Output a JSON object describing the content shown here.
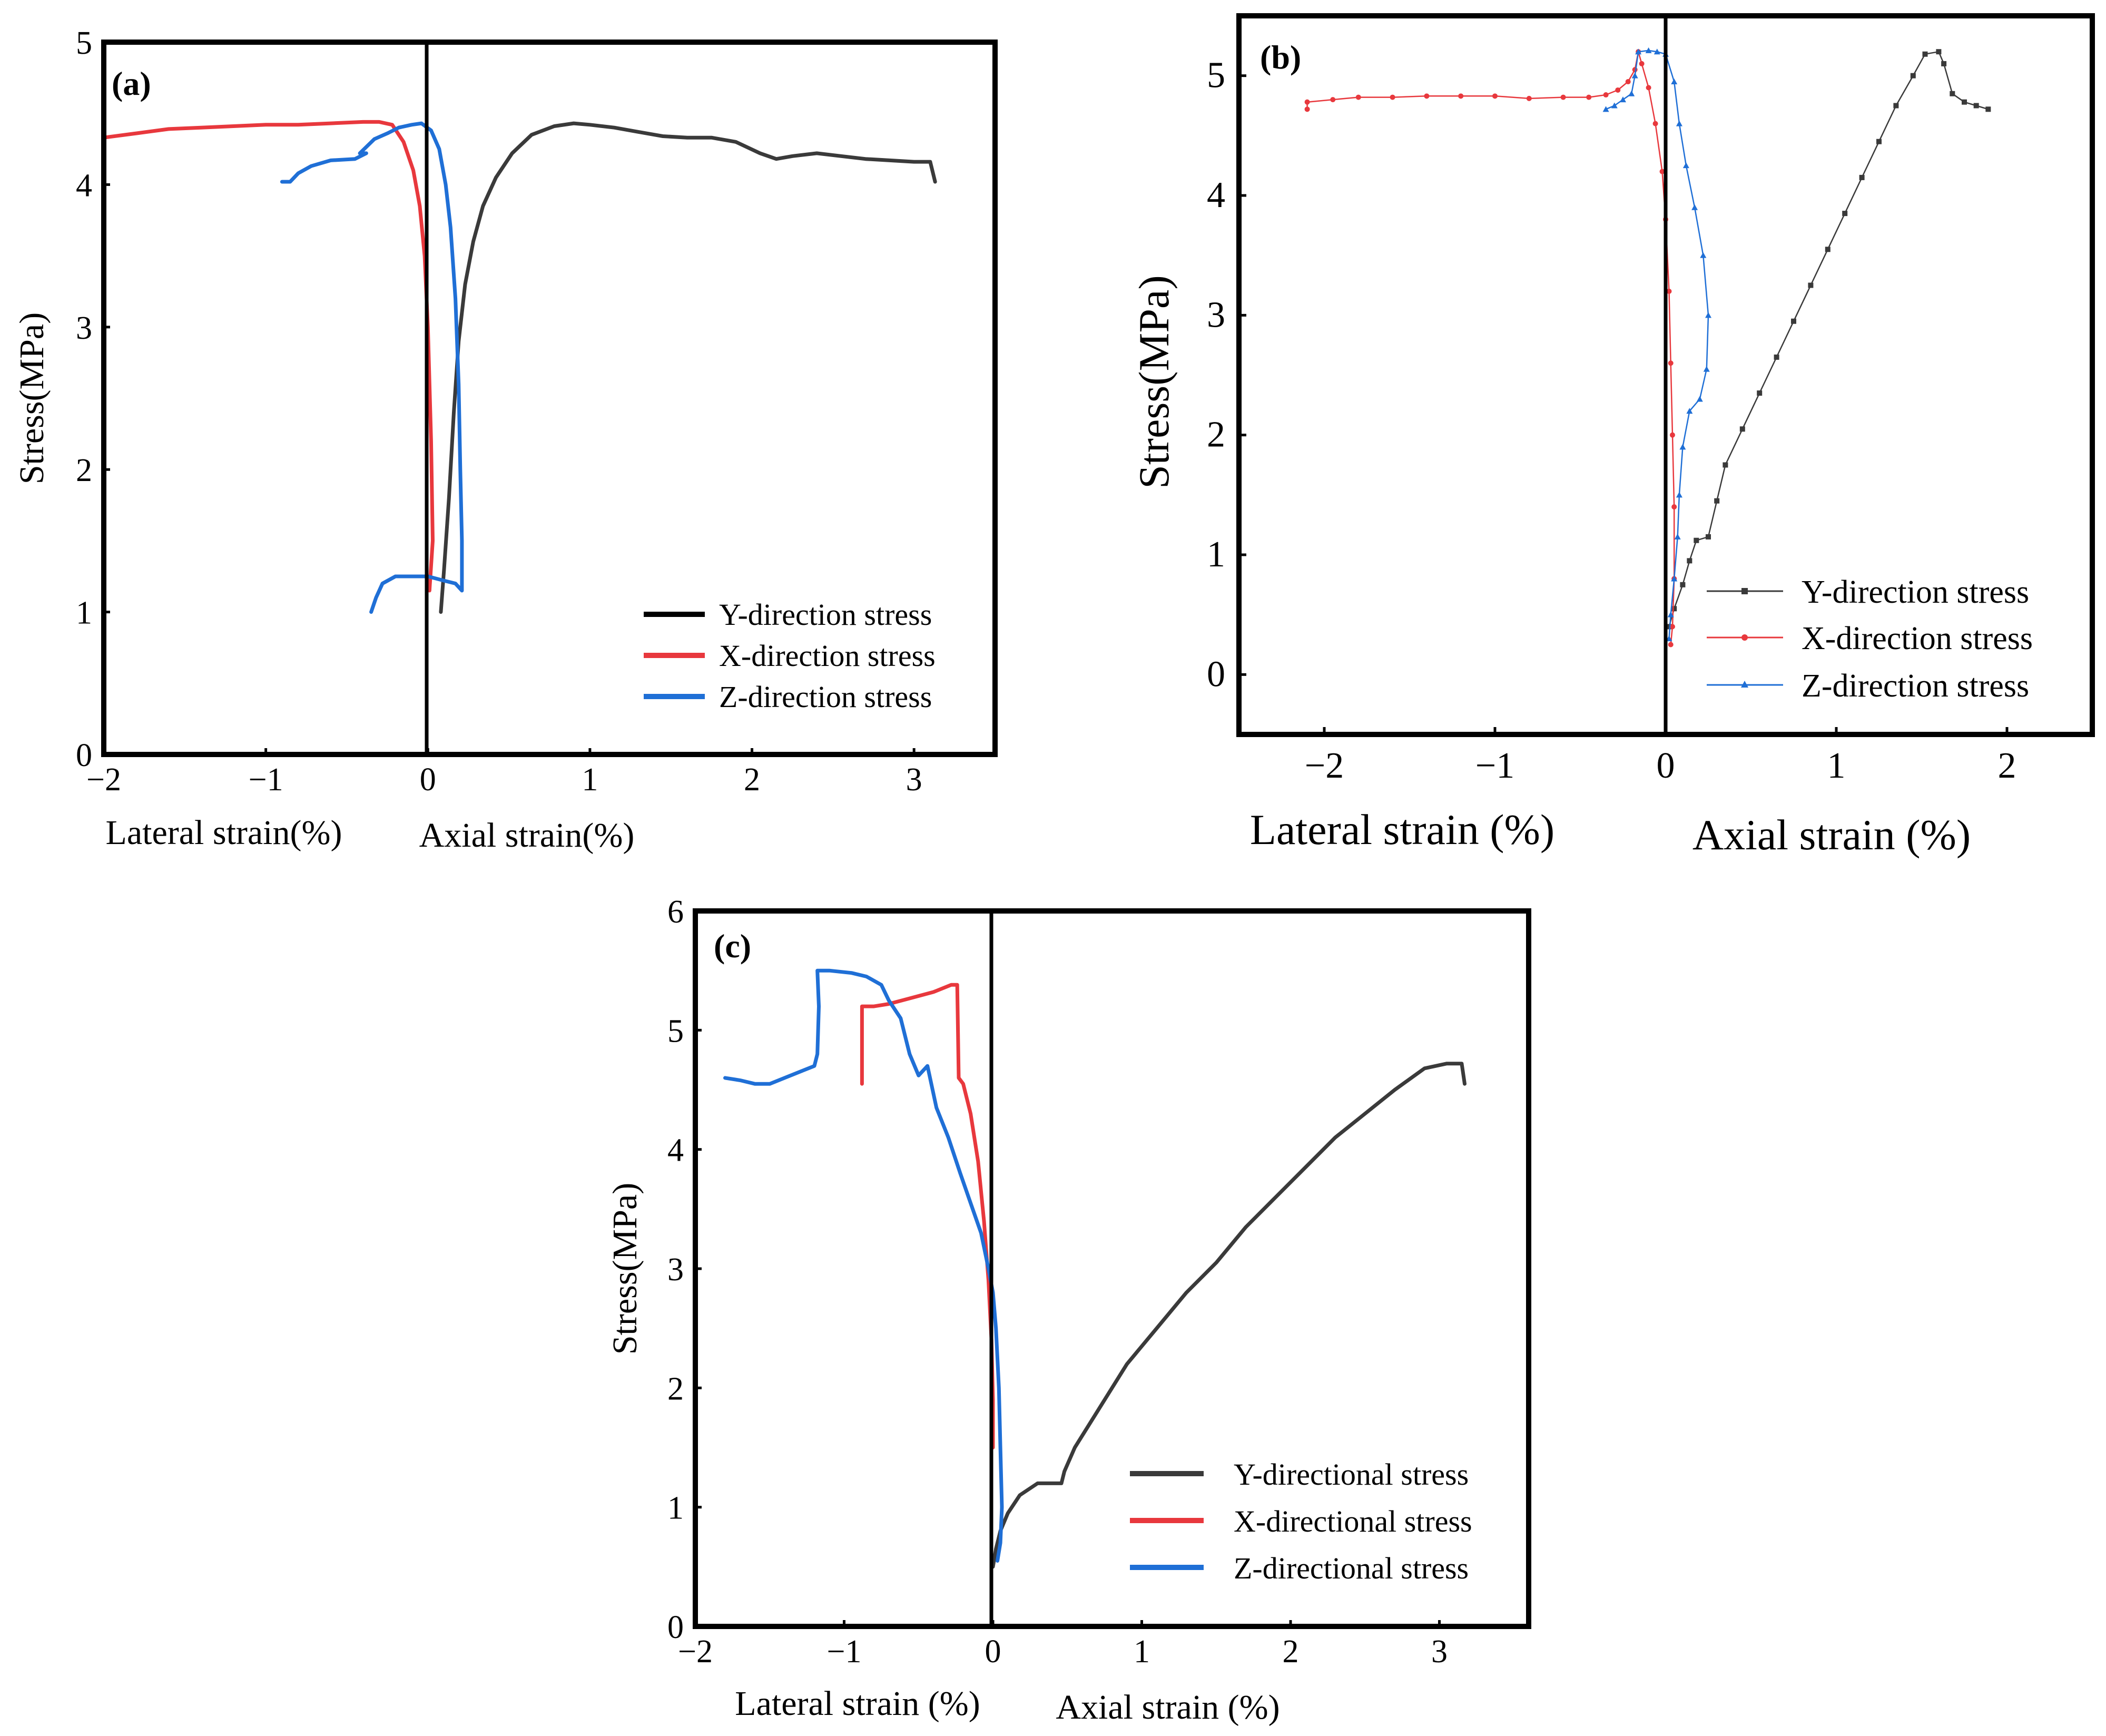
{
  "chart_data": [
    {
      "id": "a",
      "type": "line",
      "panel_label": "(a)",
      "ylabel": "Stress(MPa)",
      "xlabel_left": "Lateral strain(%)",
      "xlabel_right": "Axial strain(%)",
      "xlim": [
        -2,
        3.5
      ],
      "ylim": [
        0,
        5
      ],
      "xticks": [
        -2,
        -1,
        0,
        1,
        2,
        3
      ],
      "xtick_labels": [
        "−2",
        "−1",
        "0",
        "1",
        "2",
        "3"
      ],
      "yticks": [
        0,
        1,
        2,
        3,
        4,
        5
      ],
      "ytick_labels": [
        "0",
        "1",
        "2",
        "3",
        "4",
        "5"
      ],
      "legend_position": "bottom-right",
      "series": [
        {
          "name": "Y-direction stress",
          "color": "#3a3a3a",
          "marker": "none",
          "points": [
            [
              0.08,
              1.0
            ],
            [
              0.1,
              1.3
            ],
            [
              0.13,
              1.8
            ],
            [
              0.16,
              2.4
            ],
            [
              0.19,
              2.9
            ],
            [
              0.23,
              3.3
            ],
            [
              0.28,
              3.6
            ],
            [
              0.34,
              3.85
            ],
            [
              0.42,
              4.05
            ],
            [
              0.52,
              4.22
            ],
            [
              0.64,
              4.35
            ],
            [
              0.78,
              4.41
            ],
            [
              0.9,
              4.43
            ],
            [
              1.0,
              4.42
            ],
            [
              1.15,
              4.4
            ],
            [
              1.3,
              4.37
            ],
            [
              1.45,
              4.34
            ],
            [
              1.6,
              4.33
            ],
            [
              1.75,
              4.33
            ],
            [
              1.9,
              4.3
            ],
            [
              2.05,
              4.22
            ],
            [
              2.15,
              4.18
            ],
            [
              2.25,
              4.2
            ],
            [
              2.4,
              4.22
            ],
            [
              2.55,
              4.2
            ],
            [
              2.7,
              4.18
            ],
            [
              2.85,
              4.17
            ],
            [
              3.0,
              4.16
            ],
            [
              3.1,
              4.16
            ],
            [
              3.13,
              4.02
            ]
          ]
        },
        {
          "name": "X-direction stress",
          "color": "#e8383d",
          "marker": "none",
          "points": [
            [
              -2.0,
              4.33
            ],
            [
              -1.8,
              4.36
            ],
            [
              -1.6,
              4.39
            ],
            [
              -1.4,
              4.4
            ],
            [
              -1.2,
              4.41
            ],
            [
              -1.0,
              4.42
            ],
            [
              -0.8,
              4.42
            ],
            [
              -0.6,
              4.43
            ],
            [
              -0.4,
              4.44
            ],
            [
              -0.3,
              4.44
            ],
            [
              -0.22,
              4.42
            ],
            [
              -0.15,
              4.3
            ],
            [
              -0.09,
              4.1
            ],
            [
              -0.05,
              3.85
            ],
            [
              -0.02,
              3.5
            ],
            [
              0.0,
              3.0
            ],
            [
              0.02,
              2.2
            ],
            [
              0.03,
              1.5
            ],
            [
              0.01,
              1.15
            ]
          ]
        },
        {
          "name": "Z-direction stress",
          "color": "#1f6fd6",
          "marker": "none",
          "points": [
            [
              -0.9,
              4.02
            ],
            [
              -0.85,
              4.02
            ],
            [
              -0.8,
              4.08
            ],
            [
              -0.72,
              4.13
            ],
            [
              -0.6,
              4.17
            ],
            [
              -0.45,
              4.18
            ],
            [
              -0.38,
              4.22
            ],
            [
              -0.42,
              4.22
            ],
            [
              -0.33,
              4.32
            ],
            [
              -0.25,
              4.36
            ],
            [
              -0.18,
              4.4
            ],
            [
              -0.1,
              4.42
            ],
            [
              -0.04,
              4.43
            ],
            [
              0.02,
              4.38
            ],
            [
              0.07,
              4.25
            ],
            [
              0.11,
              4.0
            ],
            [
              0.14,
              3.7
            ],
            [
              0.17,
              3.2
            ],
            [
              0.19,
              2.6
            ],
            [
              0.2,
              2.0
            ],
            [
              0.21,
              1.5
            ],
            [
              0.21,
              1.15
            ],
            [
              0.17,
              1.2
            ],
            [
              0.1,
              1.22
            ],
            [
              0.0,
              1.25
            ],
            [
              -0.1,
              1.25
            ],
            [
              -0.2,
              1.25
            ],
            [
              -0.28,
              1.2
            ],
            [
              -0.32,
              1.1
            ],
            [
              -0.35,
              1.0
            ]
          ]
        }
      ]
    },
    {
      "id": "b",
      "type": "line",
      "panel_label": "(b)",
      "ylabel": "Stress(MPa)",
      "xlabel_left": "Lateral strain (%)",
      "xlabel_right": "Axial strain (%)",
      "xlim": [
        -2.5,
        2.5
      ],
      "ylim": [
        -0.5,
        5.5
      ],
      "xticks": [
        -2,
        -1,
        0,
        1,
        2
      ],
      "xtick_labels": [
        "−2",
        "−1",
        "0",
        "1",
        "2"
      ],
      "yticks": [
        0,
        1,
        2,
        3,
        4,
        5
      ],
      "ytick_labels": [
        "0",
        "1",
        "2",
        "3",
        "4",
        "5"
      ],
      "legend_position": "bottom-right",
      "series": [
        {
          "name": "Y-direction stress",
          "color": "#3a3a3a",
          "marker": "square",
          "points": [
            [
              0.02,
              0.4
            ],
            [
              0.05,
              0.55
            ],
            [
              0.1,
              0.75
            ],
            [
              0.14,
              0.95
            ],
            [
              0.18,
              1.12
            ],
            [
              0.25,
              1.15
            ],
            [
              0.3,
              1.45
            ],
            [
              0.35,
              1.75
            ],
            [
              0.45,
              2.05
            ],
            [
              0.55,
              2.35
            ],
            [
              0.65,
              2.65
            ],
            [
              0.75,
              2.95
            ],
            [
              0.85,
              3.25
            ],
            [
              0.95,
              3.55
            ],
            [
              1.05,
              3.85
            ],
            [
              1.15,
              4.15
            ],
            [
              1.25,
              4.45
            ],
            [
              1.35,
              4.75
            ],
            [
              1.45,
              5.0
            ],
            [
              1.52,
              5.18
            ],
            [
              1.6,
              5.2
            ],
            [
              1.63,
              5.1
            ],
            [
              1.68,
              4.85
            ],
            [
              1.75,
              4.78
            ],
            [
              1.82,
              4.75
            ],
            [
              1.89,
              4.72
            ]
          ]
        },
        {
          "name": "X-direction stress",
          "color": "#e8383d",
          "marker": "circle",
          "points": [
            [
              -2.1,
              4.72
            ],
            [
              -2.1,
              4.78
            ],
            [
              -1.95,
              4.8
            ],
            [
              -1.8,
              4.82
            ],
            [
              -1.6,
              4.82
            ],
            [
              -1.4,
              4.83
            ],
            [
              -1.2,
              4.83
            ],
            [
              -1.0,
              4.83
            ],
            [
              -0.8,
              4.81
            ],
            [
              -0.6,
              4.82
            ],
            [
              -0.45,
              4.82
            ],
            [
              -0.35,
              4.84
            ],
            [
              -0.28,
              4.88
            ],
            [
              -0.22,
              4.95
            ],
            [
              -0.18,
              5.05
            ],
            [
              -0.16,
              5.2
            ],
            [
              -0.14,
              5.1
            ],
            [
              -0.1,
              4.9
            ],
            [
              -0.06,
              4.6
            ],
            [
              -0.02,
              4.2
            ],
            [
              0.0,
              3.8
            ],
            [
              0.02,
              3.2
            ],
            [
              0.03,
              2.6
            ],
            [
              0.04,
              2.0
            ],
            [
              0.05,
              1.4
            ],
            [
              0.05,
              0.8
            ],
            [
              0.04,
              0.4
            ],
            [
              0.03,
              0.25
            ]
          ]
        },
        {
          "name": "Z-direction stress",
          "color": "#1f6fd6",
          "marker": "triangle",
          "points": [
            [
              -0.35,
              4.72
            ],
            [
              -0.3,
              4.75
            ],
            [
              -0.25,
              4.8
            ],
            [
              -0.2,
              4.85
            ],
            [
              -0.18,
              5.0
            ],
            [
              -0.16,
              5.2
            ],
            [
              -0.1,
              5.21
            ],
            [
              -0.05,
              5.2
            ],
            [
              0.0,
              5.18
            ],
            [
              0.05,
              4.95
            ],
            [
              0.08,
              4.6
            ],
            [
              0.12,
              4.25
            ],
            [
              0.17,
              3.9
            ],
            [
              0.22,
              3.5
            ],
            [
              0.25,
              3.0
            ],
            [
              0.24,
              2.55
            ],
            [
              0.2,
              2.3
            ],
            [
              0.14,
              2.2
            ],
            [
              0.1,
              1.9
            ],
            [
              0.08,
              1.5
            ],
            [
              0.07,
              1.15
            ],
            [
              0.05,
              0.8
            ],
            [
              0.03,
              0.5
            ],
            [
              0.02,
              0.3
            ]
          ]
        }
      ]
    },
    {
      "id": "c",
      "type": "line",
      "panel_label": "(c)",
      "ylabel": "Stress(MPa)",
      "xlabel_left": "Lateral strain (%)",
      "xlabel_right": "Axial strain (%)",
      "xlim": [
        -2,
        3.6
      ],
      "ylim": [
        0,
        6
      ],
      "xticks": [
        -2,
        -1,
        0,
        1,
        2,
        3
      ],
      "xtick_labels": [
        "−2",
        "−1",
        "0",
        "1",
        "2",
        "3"
      ],
      "yticks": [
        0,
        1,
        2,
        3,
        4,
        5,
        6
      ],
      "ytick_labels": [
        "0",
        "1",
        "2",
        "3",
        "4",
        "5",
        "6"
      ],
      "legend_position": "bottom-right",
      "series": [
        {
          "name": "Y-directional stress",
          "color": "#3a3a3a",
          "marker": "none",
          "points": [
            [
              0.0,
              0.5
            ],
            [
              0.02,
              0.65
            ],
            [
              0.05,
              0.8
            ],
            [
              0.1,
              0.95
            ],
            [
              0.18,
              1.1
            ],
            [
              0.3,
              1.2
            ],
            [
              0.46,
              1.2
            ],
            [
              0.48,
              1.3
            ],
            [
              0.55,
              1.5
            ],
            [
              0.7,
              1.8
            ],
            [
              0.9,
              2.2
            ],
            [
              1.1,
              2.5
            ],
            [
              1.3,
              2.8
            ],
            [
              1.5,
              3.05
            ],
            [
              1.7,
              3.35
            ],
            [
              1.9,
              3.6
            ],
            [
              2.1,
              3.85
            ],
            [
              2.3,
              4.1
            ],
            [
              2.5,
              4.3
            ],
            [
              2.7,
              4.5
            ],
            [
              2.9,
              4.68
            ],
            [
              3.05,
              4.72
            ],
            [
              3.15,
              4.72
            ],
            [
              3.17,
              4.55
            ]
          ]
        },
        {
          "name": "X-directional stress",
          "color": "#e8383d",
          "marker": "none",
          "points": [
            [
              -0.88,
              4.55
            ],
            [
              -0.88,
              5.2
            ],
            [
              -0.8,
              5.2
            ],
            [
              -0.7,
              5.22
            ],
            [
              -0.55,
              5.27
            ],
            [
              -0.4,
              5.32
            ],
            [
              -0.28,
              5.38
            ],
            [
              -0.24,
              5.38
            ],
            [
              -0.23,
              4.6
            ],
            [
              -0.2,
              4.55
            ],
            [
              -0.15,
              4.3
            ],
            [
              -0.1,
              3.9
            ],
            [
              -0.06,
              3.4
            ],
            [
              -0.03,
              2.9
            ],
            [
              -0.01,
              2.4
            ],
            [
              0.0,
              1.9
            ],
            [
              0.0,
              1.5
            ]
          ]
        },
        {
          "name": "Z-directional stress",
          "color": "#1f6fd6",
          "marker": "none",
          "points": [
            [
              -1.8,
              4.6
            ],
            [
              -1.7,
              4.58
            ],
            [
              -1.6,
              4.55
            ],
            [
              -1.5,
              4.55
            ],
            [
              -1.4,
              4.6
            ],
            [
              -1.3,
              4.65
            ],
            [
              -1.2,
              4.7
            ],
            [
              -1.18,
              4.8
            ],
            [
              -1.17,
              5.2
            ],
            [
              -1.18,
              5.5
            ],
            [
              -1.1,
              5.5
            ],
            [
              -0.95,
              5.48
            ],
            [
              -0.85,
              5.45
            ],
            [
              -0.75,
              5.38
            ],
            [
              -0.7,
              5.25
            ],
            [
              -0.62,
              5.1
            ],
            [
              -0.56,
              4.8
            ],
            [
              -0.5,
              4.62
            ],
            [
              -0.44,
              4.7
            ],
            [
              -0.38,
              4.35
            ],
            [
              -0.3,
              4.1
            ],
            [
              -0.22,
              3.8
            ],
            [
              -0.15,
              3.55
            ],
            [
              -0.08,
              3.3
            ],
            [
              -0.03,
              3.0
            ],
            [
              0.0,
              2.8
            ],
            [
              0.02,
              2.5
            ],
            [
              0.04,
              2.0
            ],
            [
              0.05,
              1.5
            ],
            [
              0.06,
              1.0
            ],
            [
              0.05,
              0.7
            ],
            [
              0.03,
              0.55
            ]
          ]
        }
      ]
    }
  ]
}
